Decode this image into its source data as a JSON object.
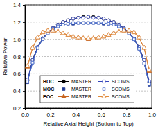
{
  "chart_data": {
    "type": "line",
    "x_label": "Relative Axial Height (Bottom to Top)",
    "y_label": "Relative Power",
    "x": [
      0.02,
      0.06,
      0.1,
      0.14,
      0.18,
      0.22,
      0.26,
      0.3,
      0.34,
      0.38,
      0.42,
      0.46,
      0.5,
      0.54,
      0.58,
      0.62,
      0.66,
      0.7,
      0.74,
      0.78,
      0.82,
      0.86,
      0.9,
      0.94,
      0.98
    ],
    "series": [
      {
        "group": "BOC",
        "name": "MASTER",
        "color": "#000000",
        "marker": "circle",
        "values": [
          0.52,
          0.76,
          0.91,
          1.01,
          1.08,
          1.13,
          1.17,
          1.2,
          1.22,
          1.24,
          1.25,
          1.26,
          1.26,
          1.26,
          1.25,
          1.24,
          1.22,
          1.2,
          1.17,
          1.13,
          1.08,
          1.01,
          0.91,
          0.76,
          0.5
        ]
      },
      {
        "group": "BOC",
        "name": "SCOMS",
        "color": "#3344bb",
        "marker": "circle-open",
        "values": [
          0.53,
          0.76,
          0.91,
          1.01,
          1.08,
          1.13,
          1.17,
          1.2,
          1.22,
          1.24,
          1.25,
          1.25,
          1.26,
          1.25,
          1.25,
          1.24,
          1.22,
          1.2,
          1.17,
          1.13,
          1.08,
          1.01,
          0.91,
          0.76,
          0.51
        ]
      },
      {
        "group": "MOC",
        "name": "MASTER",
        "color": "#1f3a93",
        "marker": "square",
        "values": [
          0.5,
          0.73,
          0.9,
          1.0,
          1.07,
          1.12,
          1.15,
          1.17,
          1.18,
          1.18,
          1.19,
          1.19,
          1.19,
          1.19,
          1.19,
          1.18,
          1.18,
          1.17,
          1.15,
          1.12,
          1.07,
          1.0,
          0.89,
          0.72,
          0.47
        ]
      },
      {
        "group": "MOC",
        "name": "SCOMS",
        "color": "#4a6fd0",
        "marker": "square-open",
        "values": [
          0.51,
          0.73,
          0.9,
          1.0,
          1.07,
          1.12,
          1.15,
          1.17,
          1.18,
          1.19,
          1.19,
          1.19,
          1.19,
          1.19,
          1.19,
          1.19,
          1.18,
          1.17,
          1.15,
          1.12,
          1.07,
          1.0,
          0.89,
          0.72,
          0.48
        ]
      },
      {
        "group": "EOC",
        "name": "MASTER",
        "color": "#c8641e",
        "marker": "triangle",
        "values": [
          0.68,
          0.9,
          1.02,
          1.08,
          1.1,
          1.1,
          1.09,
          1.07,
          1.05,
          1.03,
          1.02,
          1.01,
          1.0,
          1.01,
          1.02,
          1.03,
          1.05,
          1.07,
          1.09,
          1.1,
          1.1,
          1.08,
          1.02,
          0.9,
          0.63
        ]
      },
      {
        "group": "EOC",
        "name": "SCOMS",
        "color": "#e08a3c",
        "marker": "triangle-open",
        "values": [
          0.69,
          0.9,
          1.02,
          1.08,
          1.1,
          1.1,
          1.09,
          1.07,
          1.05,
          1.03,
          1.02,
          1.01,
          1.01,
          1.01,
          1.02,
          1.03,
          1.05,
          1.07,
          1.09,
          1.1,
          1.1,
          1.08,
          1.02,
          0.9,
          0.64
        ]
      }
    ],
    "xlim": [
      0.0,
      1.0
    ],
    "xticks": [
      {
        "value": 0.0,
        "label": "0.0"
      },
      0.2,
      0.4,
      0.6,
      0.8,
      {
        "value": 1.0,
        "label": "1.0"
      }
    ],
    "ylim": [
      0.2,
      1.4
    ],
    "yticks": [
      0.2,
      0.4,
      0.6,
      0.8,
      {
        "value": 1.0,
        "label": "1.0"
      },
      1.2,
      1.4
    ],
    "grid": true,
    "legend": "bottom"
  }
}
